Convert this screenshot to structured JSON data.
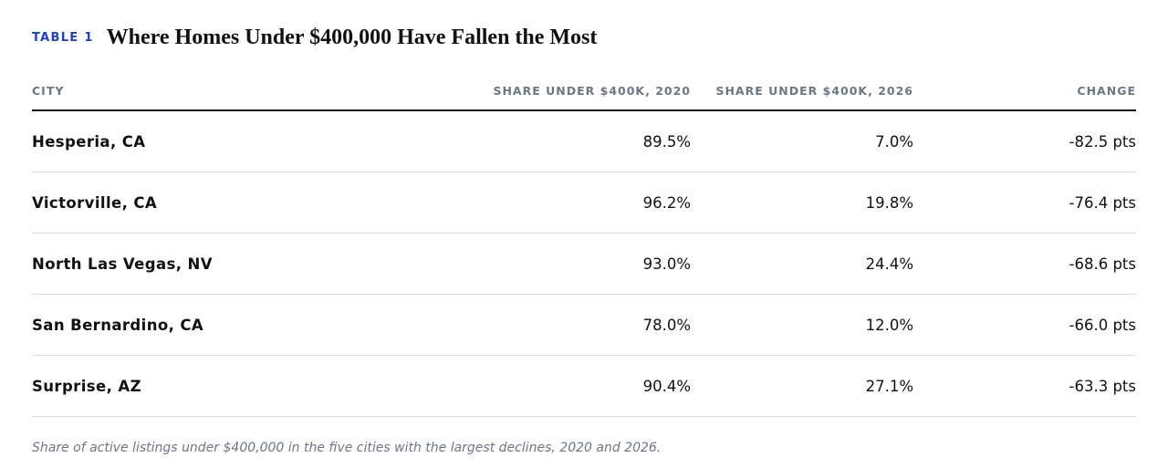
{
  "table": {
    "tag": "TABLE 1",
    "title": "Where Homes Under $400,000 Have Fallen the Most",
    "headers": {
      "city": "CITY",
      "share_2020": "SHARE UNDER $400K, 2020",
      "share_2026": "SHARE UNDER $400K, 2026",
      "change": "CHANGE"
    },
    "rows": [
      {
        "city": "Hesperia, CA",
        "share_2020": "89.5%",
        "share_2026": "7.0%",
        "change": "-82.5 pts"
      },
      {
        "city": "Victorville, CA",
        "share_2020": "96.2%",
        "share_2026": "19.8%",
        "change": "-76.4 pts"
      },
      {
        "city": "North Las Vegas, NV",
        "share_2020": "93.0%",
        "share_2026": "24.4%",
        "change": "-68.6 pts"
      },
      {
        "city": "San Bernardino, CA",
        "share_2020": "78.0%",
        "share_2026": "12.0%",
        "change": "-66.0 pts"
      },
      {
        "city": "Surprise, AZ",
        "share_2020": "90.4%",
        "share_2026": "27.1%",
        "change": "-63.3 pts"
      }
    ],
    "caption": "Share of active listings under $400,000 in the five cities with the largest declines, 2020 and 2026."
  },
  "colors": {
    "tag": "#1f3fc7",
    "title": "#111111",
    "header_text": "#6b7785",
    "header_rule": "#111111",
    "row_divider": "#d9dde1",
    "caption": "#6b7785"
  }
}
